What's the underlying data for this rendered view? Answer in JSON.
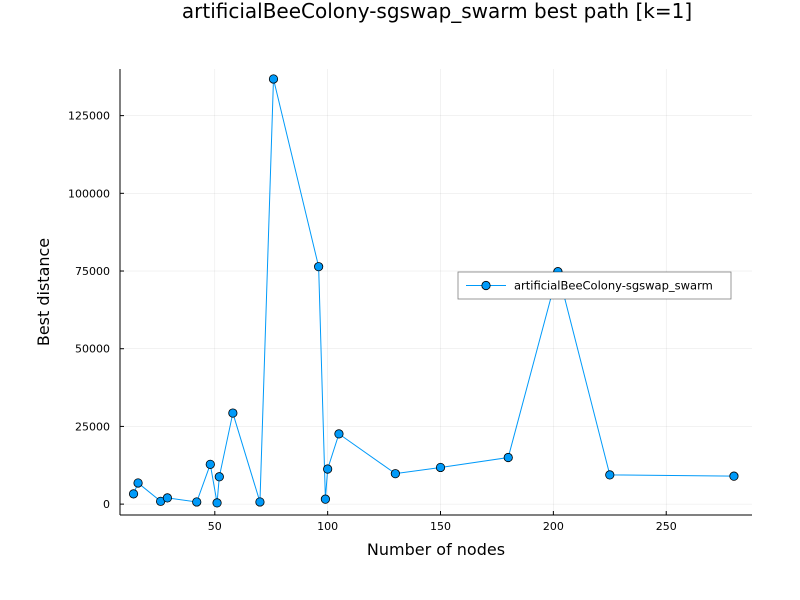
{
  "chart_data": {
    "type": "line",
    "title": "artificialBeeColony-sgswap_swarm best path [k=1]",
    "xlabel": "Number of nodes",
    "ylabel": "Best distance",
    "xlim": [
      8,
      288
    ],
    "ylim": [
      -3500,
      140000
    ],
    "xticks": [
      50,
      100,
      150,
      200,
      250
    ],
    "yticks": [
      0,
      25000,
      50000,
      75000,
      100000,
      125000
    ],
    "xtick_labels": [
      "50",
      "100",
      "150",
      "200",
      "250"
    ],
    "ytick_labels": [
      "0",
      "25000",
      "50000",
      "75000",
      "100000",
      "125000"
    ],
    "grid": true,
    "legend_position": "right",
    "series_color": "#009af9",
    "series": [
      {
        "name": "artificialBeeColony-sgswap_swarm",
        "x": [
          14,
          16,
          26,
          29,
          42,
          48,
          51,
          52,
          58,
          70,
          76,
          96,
          99,
          100,
          105,
          130,
          150,
          180,
          202,
          225,
          280
        ],
        "y": [
          3300,
          6800,
          900,
          2000,
          700,
          12800,
          400,
          8800,
          29300,
          700,
          136800,
          76400,
          1600,
          11300,
          22600,
          9800,
          11800,
          15000,
          74800,
          9400,
          9000
        ]
      }
    ]
  }
}
